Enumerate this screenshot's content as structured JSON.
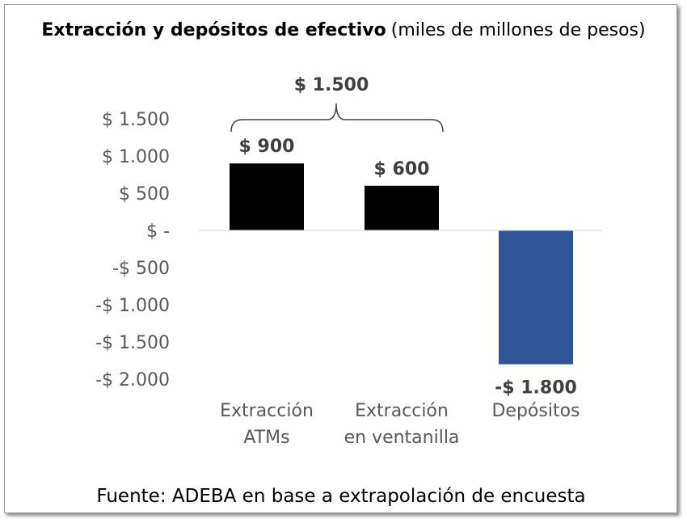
{
  "chart_data": {
    "type": "bar",
    "title": "Extracción y depósitos de efectivo",
    "subtitle": "(miles de millones de pesos)",
    "categories": [
      [
        "Extracción",
        "ATMs"
      ],
      [
        "Extracción",
        "en ventanilla"
      ],
      [
        "Depósitos"
      ]
    ],
    "values": [
      900,
      600,
      -1800
    ],
    "data_labels": [
      "$ 900",
      "$ 600",
      "-$ 1.800"
    ],
    "colors": [
      "#000000",
      "#000000",
      "#2f5597"
    ],
    "ylim": [
      -2000,
      1500
    ],
    "yticks": [
      1500,
      1000,
      500,
      0,
      -500,
      -1000,
      -1500,
      -2000
    ],
    "ytick_labels": [
      "$ 1.500",
      "$ 1.000",
      "$ 500",
      "$ -",
      "-$ 500",
      "-$ 1.000",
      "-$ 1.500",
      "-$ 2.000"
    ],
    "grid": false,
    "annotation": {
      "label": "$ 1.500",
      "spans": [
        0,
        1
      ]
    },
    "source": "Fuente: ADEBA en base a extrapolación de encuesta"
  }
}
